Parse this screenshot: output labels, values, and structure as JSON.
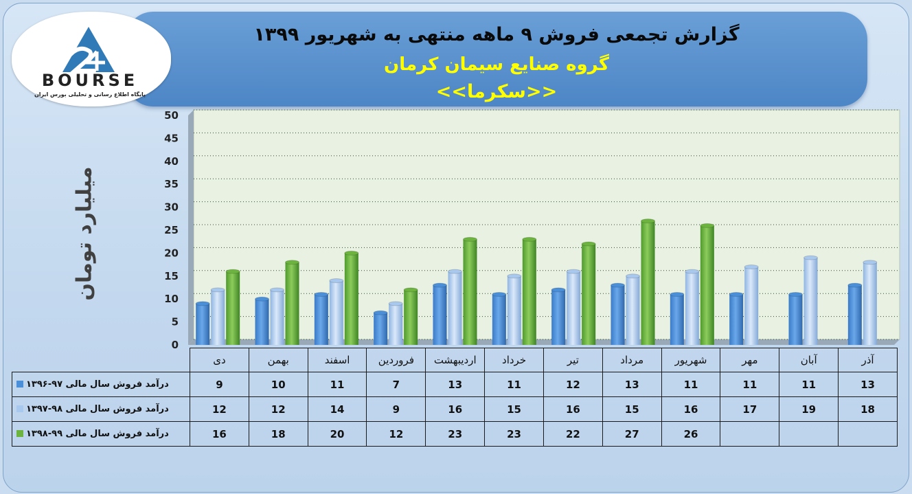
{
  "header": {
    "title": "گزارش تجمعی فروش ۹ ماهه منتهی به شهریور ۱۳۹۹",
    "company": "گروه صنایع سیمان کرمان",
    "symbol": "<<سکرما>>"
  },
  "logo": {
    "brand": "BOURSE",
    "tagline": "پایگاه اطلاع رسانی و تحلیلی بورس ایران"
  },
  "colors": {
    "series1": "#4a8fd8",
    "series2": "#a9c8ee",
    "series3": "#6db33f"
  },
  "chart_data": {
    "type": "bar",
    "ylabel": "میلیارد تومان",
    "ylim": [
      0,
      50
    ],
    "yticks": [
      "0",
      "5",
      "10",
      "15",
      "20",
      "25",
      "30",
      "35",
      "40",
      "45",
      "50"
    ],
    "grid": true,
    "categories": [
      "دی",
      "بهمن",
      "اسفند",
      "فروردین",
      "اردیبهشت",
      "خرداد",
      "تیر",
      "مرداد",
      "شهریور",
      "مهر",
      "آبان",
      "آذر"
    ],
    "series": [
      {
        "name": "درآمد فروش سال مالی ۹۷-۱۳۹۶",
        "values": [
          9,
          10,
          11,
          7,
          13,
          11,
          12,
          13,
          11,
          11,
          11,
          13
        ]
      },
      {
        "name": "درآمد فروش سال مالی ۹۸-۱۳۹۷",
        "values": [
          12,
          12,
          14,
          9,
          16,
          15,
          16,
          15,
          16,
          17,
          19,
          18
        ]
      },
      {
        "name": "درآمد فروش سال مالی ۹۹-۱۳۹۸",
        "values": [
          16,
          18,
          20,
          12,
          23,
          23,
          22,
          27,
          26,
          null,
          null,
          null
        ]
      }
    ]
  }
}
